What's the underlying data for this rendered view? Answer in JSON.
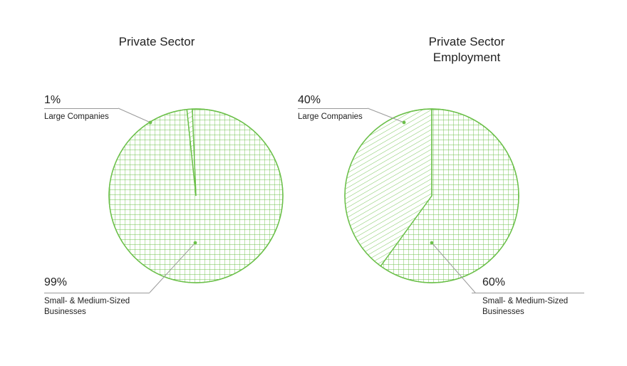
{
  "colors": {
    "accent": "#6cc04a",
    "leader": "#9a9a9a"
  },
  "chart_data": [
    {
      "type": "pie",
      "title": "Private Sector",
      "slices": [
        {
          "label": "Large Companies",
          "percent_label": "1%",
          "value": 1,
          "pattern": "diagonal-hatch"
        },
        {
          "label": "Small- & Medium-Sized Businesses",
          "percent_label": "99%",
          "value": 99,
          "pattern": "grid-hatch"
        }
      ]
    },
    {
      "type": "pie",
      "title": "Private Sector Employment",
      "slices": [
        {
          "label": "Large Companies",
          "percent_label": "40%",
          "value": 40,
          "pattern": "diagonal-hatch"
        },
        {
          "label": "Small- & Medium-Sized Businesses",
          "percent_label": "60%",
          "value": 60,
          "pattern": "grid-hatch"
        }
      ]
    }
  ]
}
